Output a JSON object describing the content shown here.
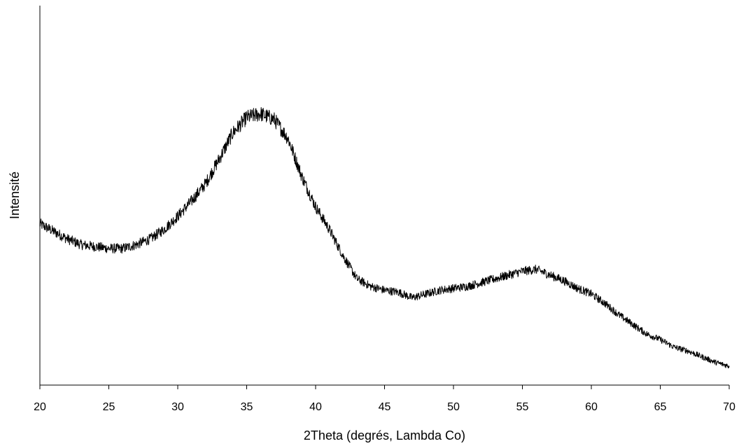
{
  "chart_data": {
    "type": "line",
    "title": "",
    "xlabel": "2Theta (degrés, Lambda Co)",
    "ylabel": "Intensité",
    "xlim": [
      20,
      70
    ],
    "xticks": [
      20,
      25,
      30,
      35,
      40,
      45,
      50,
      55,
      60,
      65,
      70
    ],
    "ylim": [
      0,
      100
    ],
    "y_ticks_shown": false,
    "grid": false,
    "legend": "none",
    "line_color": "#000000",
    "series": [
      {
        "x": [
          20,
          21,
          22,
          23,
          24,
          25,
          26,
          27,
          28,
          29,
          30,
          31,
          32,
          33,
          34,
          35,
          36,
          37,
          38,
          39,
          40,
          41,
          42,
          43,
          44,
          45,
          46,
          47,
          48,
          49,
          50,
          51,
          52,
          53,
          54,
          55,
          56,
          57,
          58,
          59,
          60,
          61,
          62,
          63,
          64,
          65,
          66,
          67,
          68,
          69,
          70
        ],
        "values": [
          42.5,
          40.5,
          38.5,
          37,
          36.5,
          36,
          36,
          37,
          38.5,
          41,
          44.5,
          48.5,
          53,
          59.5,
          66.5,
          70.5,
          71.5,
          70,
          65,
          55,
          47,
          41,
          34,
          28,
          26,
          25,
          24.5,
          23,
          24,
          25,
          25.5,
          26,
          27,
          28,
          29,
          30,
          30.5,
          29,
          27.5,
          25.5,
          24,
          21.5,
          18.5,
          16,
          13.5,
          12,
          10,
          9,
          7.5,
          6,
          5
        ]
      }
    ]
  }
}
